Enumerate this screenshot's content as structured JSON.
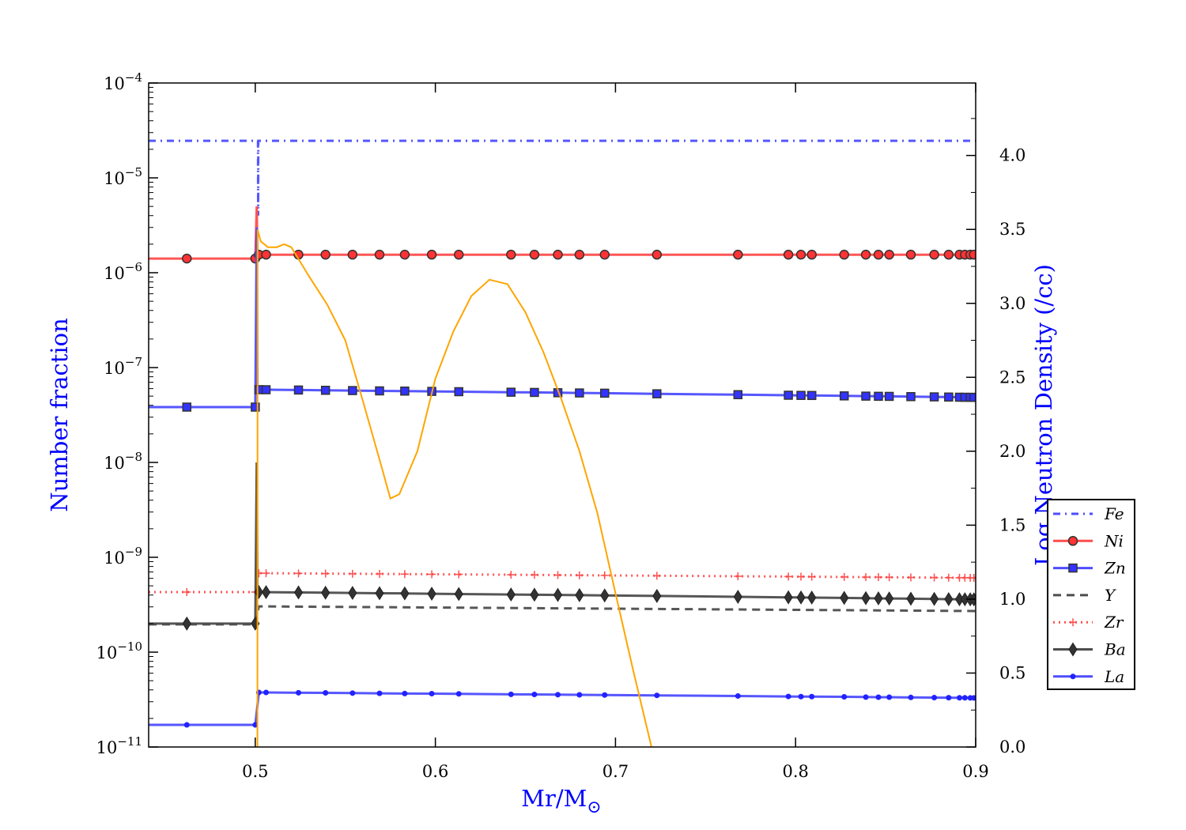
{
  "chart_data": {
    "type": "line",
    "xlabel": "Mr/M",
    "xlabel_subscript": "⊙",
    "ylabel_left": "Number fraction",
    "ylabel_right": "Log Neutron Density (/cc)",
    "xlim": [
      0.4408,
      0.9
    ],
    "ylim_left": [
      1e-11,
      0.0001
    ],
    "yscale_left": "log",
    "ylim_right": [
      0,
      4.49
    ],
    "x_ticks": [
      "0.5",
      "0.6",
      "0.7",
      "0.8",
      "0.9"
    ],
    "y_left_ticks": [
      {
        "base": "10",
        "exp": "−4"
      },
      {
        "base": "10",
        "exp": "−5"
      },
      {
        "base": "10",
        "exp": "−6"
      },
      {
        "base": "10",
        "exp": "−7"
      },
      {
        "base": "10",
        "exp": "−8"
      },
      {
        "base": "10",
        "exp": "−9"
      },
      {
        "base": "10",
        "exp": "−10"
      },
      {
        "base": "10",
        "exp": "−11"
      }
    ],
    "y_right_ticks": [
      "0.0",
      "0.5",
      "1.0",
      "1.5",
      "2.0",
      "2.5",
      "3.0",
      "3.5",
      "4.0"
    ],
    "grid": false,
    "legend_placement": "center-right",
    "marker_x": [
      0.462,
      0.5,
      0.502,
      0.506,
      0.524,
      0.539,
      0.554,
      0.569,
      0.583,
      0.598,
      0.613,
      0.642,
      0.655,
      0.668,
      0.68,
      0.694,
      0.723,
      0.768,
      0.796,
      0.803,
      0.809,
      0.827,
      0.839,
      0.846,
      0.852,
      0.864,
      0.877,
      0.885,
      0.891,
      0.894,
      0.897,
      0.899
    ],
    "series": [
      {
        "name": "Fe",
        "color": "#4d4dff",
        "style": "dashdot",
        "marker": "none",
        "x": [
          0.4408,
          0.5015,
          0.5016,
          0.5017,
          0.9
        ],
        "values": [
          2.46e-05,
          2.46e-05,
          4e-06,
          2.46e-05,
          2.46e-05
        ]
      },
      {
        "name": "Ni",
        "color": "#ff4d4d",
        "style": "solid",
        "marker": "circle",
        "values": [
          1.41e-06,
          1.41e-06,
          1.55e-06,
          1.55e-06,
          1.55e-06,
          1.55e-06,
          1.55e-06,
          1.55e-06,
          1.55e-06,
          1.55e-06,
          1.55e-06,
          1.55e-06,
          1.55e-06,
          1.55e-06,
          1.55e-06,
          1.55e-06,
          1.55e-06,
          1.55e-06,
          1.55e-06,
          1.55e-06,
          1.55e-06,
          1.55e-06,
          1.55e-06,
          1.55e-06,
          1.55e-06,
          1.55e-06,
          1.55e-06,
          1.55e-06,
          1.55e-06,
          1.55e-06,
          1.55e-06,
          1.55e-06
        ],
        "spike": 5e-06
      },
      {
        "name": "Zn",
        "color": "#4d4dff",
        "style": "solid",
        "marker": "square",
        "values": [
          3.83e-08,
          3.83e-08,
          5.85e-08,
          5.84e-08,
          5.8e-08,
          5.76e-08,
          5.72e-08,
          5.68e-08,
          5.65e-08,
          5.61e-08,
          5.57e-08,
          5.5e-08,
          5.47e-08,
          5.43e-08,
          5.4e-08,
          5.37e-08,
          5.29e-08,
          5.18e-08,
          5.11e-08,
          5.09e-08,
          5.08e-08,
          5.03e-08,
          5e-08,
          4.98e-08,
          4.97e-08,
          4.94e-08,
          4.91e-08,
          4.89e-08,
          4.87e-08,
          4.86e-08,
          4.86e-08,
          4.85e-08
        ],
        "spike": 3e-06
      },
      {
        "name": "Y",
        "color": "#4d4d4d",
        "style": "dashed",
        "marker": "none",
        "x": [
          0.4408,
          0.5,
          0.502,
          0.9
        ],
        "values": [
          1.96e-10,
          1.96e-10,
          3.04e-10,
          2.71e-10
        ]
      },
      {
        "name": "Zr",
        "color": "#ff4d4d",
        "style": "dotted",
        "marker": "plus",
        "values": [
          4.3e-10,
          4.3e-10,
          6.8e-10,
          6.79e-10,
          6.76e-10,
          6.73e-10,
          6.7e-10,
          6.68e-10,
          6.65e-10,
          6.62e-10,
          6.6e-10,
          6.54e-10,
          6.52e-10,
          6.49e-10,
          6.47e-10,
          6.45e-10,
          6.39e-10,
          6.31e-10,
          6.26e-10,
          6.25e-10,
          6.24e-10,
          6.2e-10,
          6.18e-10,
          6.17e-10,
          6.16e-10,
          6.13e-10,
          6.11e-10,
          6.1e-10,
          6.08e-10,
          6.08e-10,
          6.07e-10,
          6.07e-10
        ]
      },
      {
        "name": "Ba",
        "color": "#4d4d4d",
        "style": "solid",
        "marker": "diamond",
        "values": [
          2e-10,
          2e-10,
          4.3e-10,
          4.29e-10,
          4.26e-10,
          4.23e-10,
          4.21e-10,
          4.18e-10,
          4.16e-10,
          4.13e-10,
          4.1e-10,
          4.05e-10,
          4.03e-10,
          4.01e-10,
          3.99e-10,
          3.96e-10,
          3.91e-10,
          3.83e-10,
          3.78e-10,
          3.77e-10,
          3.76e-10,
          3.73e-10,
          3.71e-10,
          3.69e-10,
          3.68e-10,
          3.66e-10,
          3.64e-10,
          3.62e-10,
          3.61e-10,
          3.61e-10,
          3.6e-10,
          3.6e-10
        ],
        "spike": 1e-08
      },
      {
        "name": "La",
        "color": "#4d4dff",
        "style": "solid",
        "marker": "dot",
        "values": [
          1.71e-11,
          1.71e-11,
          3.76e-11,
          3.76e-11,
          3.73e-11,
          3.72e-11,
          3.7e-11,
          3.68e-11,
          3.66e-11,
          3.65e-11,
          3.63e-11,
          3.59e-11,
          3.58e-11,
          3.56e-11,
          3.55e-11,
          3.53e-11,
          3.5e-11,
          3.45e-11,
          3.41e-11,
          3.4e-11,
          3.4e-11,
          3.38e-11,
          3.36e-11,
          3.35e-11,
          3.35e-11,
          3.33e-11,
          3.32e-11,
          3.31e-11,
          3.3e-11,
          3.3e-11,
          3.29e-11,
          3.29e-11
        ]
      }
    ],
    "neutron_density": {
      "axis": "right",
      "color": "#ffa500",
      "x": [
        0.5012,
        0.5013,
        0.503,
        0.507,
        0.512,
        0.516,
        0.52,
        0.53,
        0.54,
        0.55,
        0.56,
        0.57,
        0.575,
        0.58,
        0.59,
        0.6,
        0.61,
        0.62,
        0.63,
        0.64,
        0.65,
        0.66,
        0.67,
        0.68,
        0.69,
        0.7,
        0.71,
        0.72
      ],
      "values": [
        0.0,
        3.5,
        3.42,
        3.38,
        3.38,
        3.4,
        3.38,
        3.18,
        2.99,
        2.75,
        2.33,
        1.9,
        1.68,
        1.71,
        2.0,
        2.49,
        2.81,
        3.05,
        3.16,
        3.13,
        2.94,
        2.67,
        2.35,
        2.0,
        1.58,
        1.04,
        0.51,
        0.0
      ]
    }
  }
}
